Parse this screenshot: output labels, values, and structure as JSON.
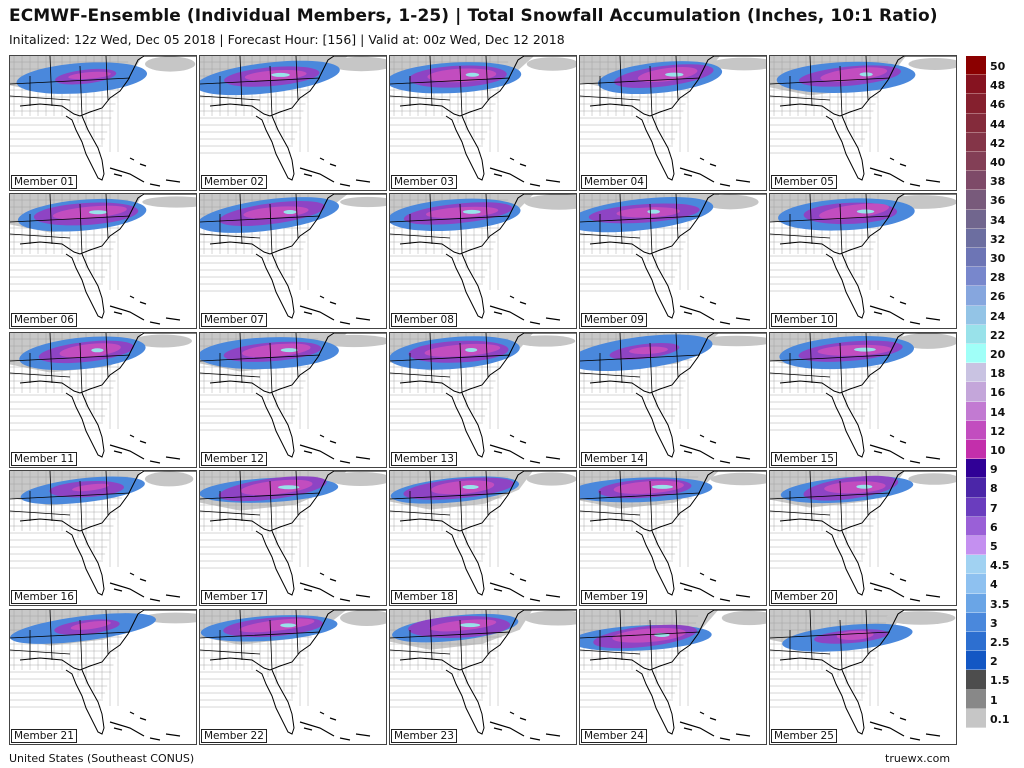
{
  "header": {
    "title": "ECMWF-Ensemble (Individual Members, 1-25) | Total Snowfall Accumulation (Inches, 10:1 Ratio)",
    "subtitle": "Initalized: 12z Wed, Dec 05 2018 | Forecast Hour: [156] | Valid at: 00z Wed, Dec 12 2018"
  },
  "panels": [
    {
      "label": "Member 01",
      "snow_intensity": "moderate",
      "core": "nc-va-light"
    },
    {
      "label": "Member 02",
      "snow_intensity": "heavy",
      "core": "tn-nc-va"
    },
    {
      "label": "Member 03",
      "snow_intensity": "heavy",
      "core": "ar-tn-nc"
    },
    {
      "label": "Member 04",
      "snow_intensity": "heavy",
      "core": "ar-tn-nc-va"
    },
    {
      "label": "Member 05",
      "snow_intensity": "heavy",
      "core": "tn-nc-va"
    },
    {
      "label": "Member 06",
      "snow_intensity": "heavy",
      "core": "ar-tn-nc-va"
    },
    {
      "label": "Member 07",
      "snow_intensity": "heavy",
      "core": "ar-tn-nc"
    },
    {
      "label": "Member 08",
      "snow_intensity": "heavy",
      "core": "ok-ar-tn-nc"
    },
    {
      "label": "Member 09",
      "snow_intensity": "heavy",
      "core": "ar-tn-nc"
    },
    {
      "label": "Member 10",
      "snow_intensity": "heavy",
      "core": "ar-tn-nc-va"
    },
    {
      "label": "Member 11",
      "snow_intensity": "heavy",
      "core": "ar-tn-nc-va"
    },
    {
      "label": "Member 12",
      "snow_intensity": "heavy",
      "core": "tn-nc"
    },
    {
      "label": "Member 13",
      "snow_intensity": "heavy",
      "core": "ar-tn-nc"
    },
    {
      "label": "Member 14",
      "snow_intensity": "moderate",
      "core": "tn-nc"
    },
    {
      "label": "Member 15",
      "snow_intensity": "heavy",
      "core": "ar-tn-nc"
    },
    {
      "label": "Member 16",
      "snow_intensity": "moderate",
      "core": "ar-tn"
    },
    {
      "label": "Member 17",
      "snow_intensity": "heavy",
      "core": "tn-nc-va"
    },
    {
      "label": "Member 18",
      "snow_intensity": "heavy",
      "core": "tn-nc-va"
    },
    {
      "label": "Member 19",
      "snow_intensity": "heavy",
      "core": "ar-tn-nc-va"
    },
    {
      "label": "Member 20",
      "snow_intensity": "heavy",
      "core": "ar-tn-nc"
    },
    {
      "label": "Member 21",
      "snow_intensity": "moderate",
      "core": "ar-tn"
    },
    {
      "label": "Member 22",
      "snow_intensity": "heavy",
      "core": "ar-tn-nc"
    },
    {
      "label": "Member 23",
      "snow_intensity": "heavy",
      "core": "ar-tn-nc-va"
    },
    {
      "label": "Member 24",
      "snow_intensity": "heavy",
      "core": "ar-tn-nc-va"
    },
    {
      "label": "Member 25",
      "snow_intensity": "moderate",
      "core": "ar-tn-nc"
    }
  ],
  "legend": {
    "labels": [
      "50",
      "48",
      "46",
      "44",
      "42",
      "40",
      "38",
      "36",
      "34",
      "32",
      "30",
      "28",
      "26",
      "24",
      "22",
      "20",
      "18",
      "16",
      "14",
      "12",
      "10",
      "9",
      "8",
      "7",
      "6",
      "5",
      "4.5",
      "4",
      "3.5",
      "3",
      "2.5",
      "2",
      "1.5",
      "1",
      "0.1"
    ],
    "colors": [
      "#8b0000",
      "#861320",
      "#85202e",
      "#842b3b",
      "#843548",
      "#833f56",
      "#7e4a68",
      "#785a7b",
      "#71668e",
      "#6c6ea0",
      "#6d75b5",
      "#7887cc",
      "#86a6de",
      "#93c4e6",
      "#99e2ea",
      "#a0fff8",
      "#c9c3e2",
      "#c4a6da",
      "#c27ad2",
      "#c24dbf",
      "#c32fab",
      "#300096",
      "#4b26a8",
      "#6a3dbe",
      "#9a60d7",
      "#c490f0",
      "#a1d2f2",
      "#8ec1f0",
      "#6aa5e6",
      "#4a88dc",
      "#2d6fd0",
      "#1357c4",
      "#4d4d4d",
      "#888888",
      "#c6c6c6"
    ]
  },
  "footer": {
    "left": "United States (Southeast CONUS)",
    "right": "truewx.com"
  },
  "colors": {
    "land": "#ffffff",
    "state_lines": "#000000",
    "county_lines": "#9a9a9a"
  }
}
